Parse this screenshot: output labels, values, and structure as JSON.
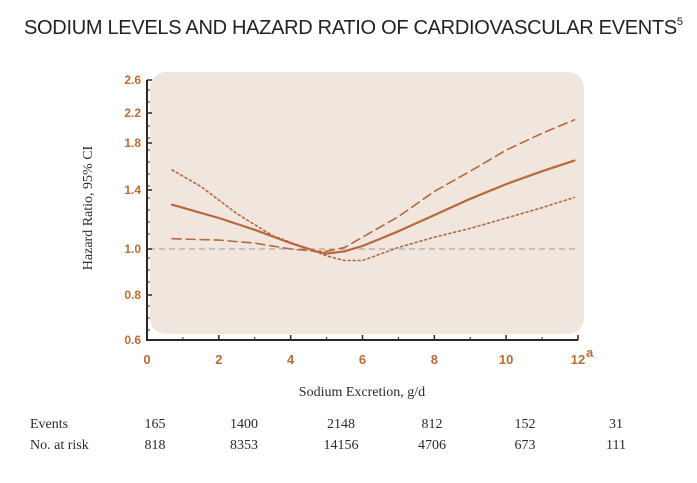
{
  "title": "SODIUM LEVELS AND HAZARD RATIO OF CARDIOVASCULAR EVENTS",
  "title_superscript": "5",
  "chart_data": {
    "type": "line",
    "xlabel": "Sodium Excretion, g/d",
    "ylabel": "Hazard Ratio, 95% CI",
    "xlim": [
      0,
      12
    ],
    "ylim": [
      0.6,
      2.6
    ],
    "x_ticks": [
      "0",
      "2",
      "4",
      "6",
      "8",
      "10",
      "12"
    ],
    "x_last_tick_superscript": "a",
    "y_ticks": [
      "0.6",
      "0.8",
      "1.0",
      "1.4",
      "1.8",
      "2.2",
      "2.6"
    ],
    "reference_line": 1.0,
    "series": [
      {
        "style": "solid",
        "x": [
          0.7,
          2,
          3,
          4,
          4.7,
          5,
          5.5,
          6,
          7,
          8,
          9,
          10,
          11,
          11.9
        ],
        "y": [
          1.3,
          1.21,
          1.13,
          1.04,
          0.99,
          0.98,
          0.99,
          1.02,
          1.12,
          1.23,
          1.34,
          1.45,
          1.56,
          1.65
        ]
      },
      {
        "style": "dashed",
        "x": [
          0.7,
          2,
          3,
          4,
          4.7,
          5,
          5.5,
          6,
          7,
          8,
          9,
          10,
          11,
          11.9
        ],
        "y": [
          1.07,
          1.06,
          1.04,
          1.0,
          0.99,
          0.99,
          1.01,
          1.08,
          1.22,
          1.39,
          1.56,
          1.74,
          1.93,
          2.11
        ]
      },
      {
        "style": "dotted",
        "x": [
          0.7,
          1.5,
          2.5,
          3.5,
          4.5,
          5,
          5.5,
          6,
          7,
          8,
          9,
          10,
          11,
          11.9
        ],
        "y": [
          1.57,
          1.43,
          1.24,
          1.09,
          1.0,
          0.97,
          0.95,
          0.95,
          1.01,
          1.08,
          1.14,
          1.21,
          1.28,
          1.35
        ]
      }
    ],
    "table": {
      "rows": [
        {
          "label": "Events",
          "values": [
            "165",
            "1400",
            "2148",
            "812",
            "152",
            "31"
          ]
        },
        {
          "label": "No. at risk",
          "values": [
            "818",
            "8353",
            "14156",
            "4706",
            "673",
            "111"
          ]
        }
      ]
    }
  },
  "colors": {
    "plot_background": "#f1e6dd",
    "line": "#b8683a",
    "axis": "#2a2a2a",
    "tick_label": "#c06a32",
    "reference": "#9a9a9a"
  }
}
